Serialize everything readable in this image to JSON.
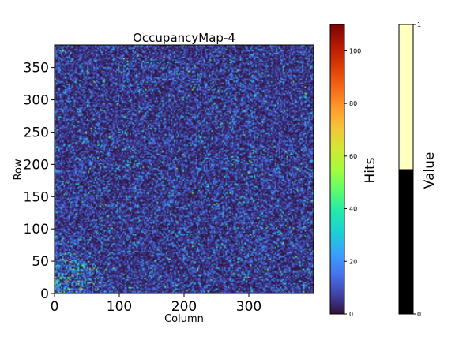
{
  "chart_data": [
    {
      "type": "heatmap",
      "title": "OccupancyMap-4",
      "xlabel": "Column",
      "ylabel": "Row",
      "xlim": [
        0,
        400
      ],
      "ylim": [
        0,
        385
      ],
      "x_ticks": [
        0,
        100,
        200,
        300
      ],
      "y_ticks": [
        0,
        50,
        100,
        150,
        200,
        250,
        300,
        350
      ],
      "colormap": "turbo",
      "background_level": 8,
      "hotspot": {
        "description": "higher occupancy in lower-left corner",
        "x_range": [
          0,
          90
        ],
        "y_range": [
          0,
          70
        ],
        "level": 22
      },
      "colorbar": {
        "label": "Hits",
        "range": [
          0,
          110
        ],
        "ticks": [
          0,
          20,
          40,
          60,
          80,
          100
        ]
      }
    },
    {
      "type": "colorbar",
      "label": "Value",
      "range": [
        0,
        1
      ],
      "ticks": [
        0,
        1
      ],
      "segments": [
        {
          "from": 0,
          "to": 0.5,
          "color": "#000000"
        },
        {
          "from": 0.5,
          "to": 1,
          "color": "#ffffc0"
        }
      ]
    }
  ]
}
